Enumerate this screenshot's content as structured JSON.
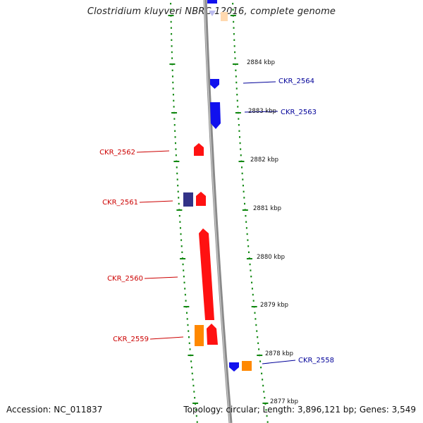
{
  "title": "Clostridium kluyveri NBRC 12016, complete genome",
  "footer": {
    "accession": "Accession: NC_011837",
    "summary": "Topology: circular; Length: 3,896,121 bp; Genes: 3,549"
  },
  "colors": {
    "backbone": "#8a8a8a",
    "ruler": "#118811",
    "forward_gene": "#ff1111",
    "reverse_gene": "#1111ee",
    "rna_gene": "#ff8800",
    "other_gene": "#333388",
    "forward_label": "#cc0000",
    "reverse_label": "#000099"
  },
  "ruler_labels": [
    "2884 kbp",
    "2883 kbp",
    "2882 kbp",
    "2881 kbp",
    "2880 kbp",
    "2879 kbp",
    "2878 kbp",
    "2877 kbp"
  ],
  "genes": [
    {
      "label": "CKR_2564",
      "strand": "reverse",
      "type": "CDS"
    },
    {
      "label": "CKR_2563",
      "strand": "reverse",
      "type": "CDS"
    },
    {
      "label": "CKR_2562",
      "strand": "forward",
      "type": "CDS"
    },
    {
      "label": "CKR_2561",
      "strand": "forward",
      "type": "CDS"
    },
    {
      "label": "CKR_2560",
      "strand": "forward",
      "type": "CDS"
    },
    {
      "label": "CKR_2559",
      "strand": "forward",
      "type": "CDS"
    },
    {
      "label": "CKR_2558",
      "strand": "reverse",
      "type": "CDS"
    }
  ]
}
